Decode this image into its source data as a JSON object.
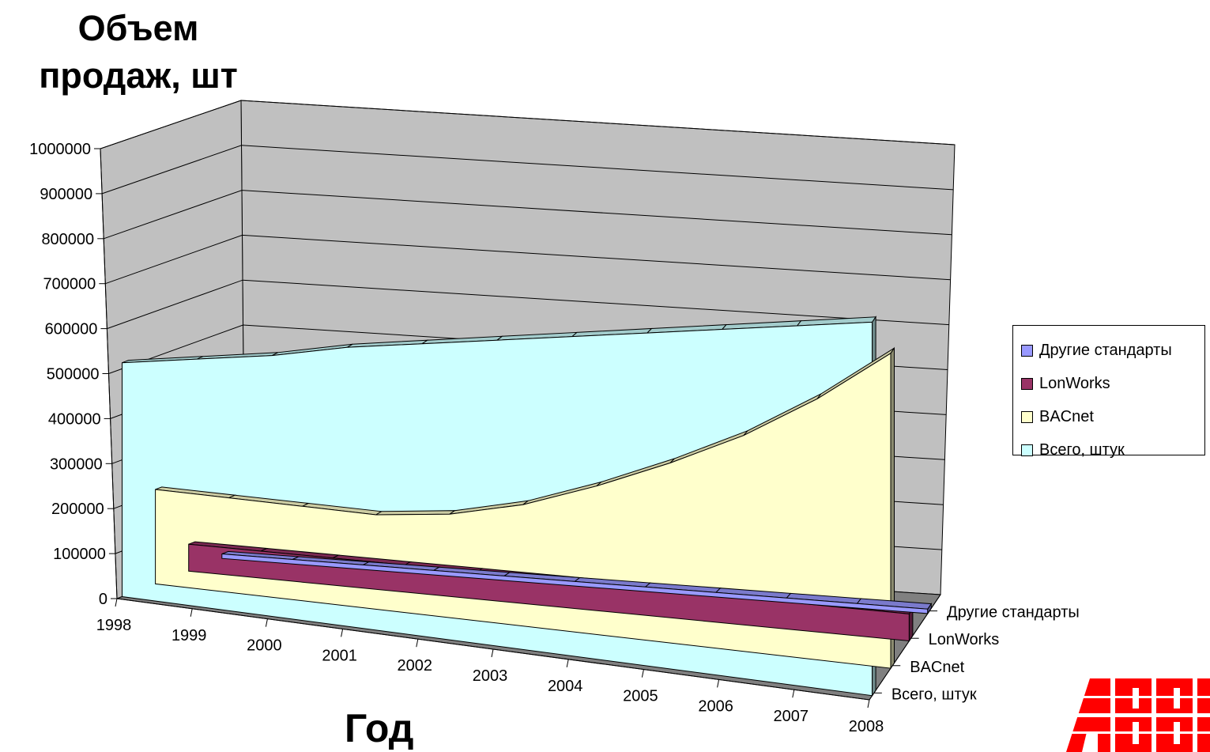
{
  "chart_data": {
    "type": "area",
    "view": "3d",
    "ylabel": "Объем продаж, шт",
    "xlabel": "Год",
    "ylim": [
      0,
      1000000
    ],
    "yticks": [
      "0",
      "100000",
      "200000",
      "300000",
      "400000",
      "500000",
      "600000",
      "700000",
      "800000",
      "900000",
      "1000000"
    ],
    "categories": [
      "1998",
      "1999",
      "2000",
      "2001",
      "2002",
      "2003",
      "2004",
      "2005",
      "2006",
      "2007",
      "2008"
    ],
    "depth_labels": [
      "Всего, штук",
      "BACnet",
      "LonWorks",
      "Другие стандарты"
    ],
    "series": [
      {
        "name": "Другие стандарты",
        "color": "#9999ff",
        "values": [
          10000,
          10000,
          10000,
          10000,
          10000,
          10000,
          10000,
          10000,
          10000,
          10000,
          10000
        ]
      },
      {
        "name": "LonWorks",
        "color": "#993366",
        "values": [
          60000,
          60000,
          60000,
          60000,
          60000,
          60000,
          60000,
          60000,
          60000,
          60000,
          60000
        ]
      },
      {
        "name": "BACnet",
        "color": "#ffffcc",
        "values": [
          210000,
          210000,
          210000,
          210000,
          230000,
          270000,
          330000,
          400000,
          480000,
          580000,
          700000
        ]
      },
      {
        "name": "Всего, штук",
        "color": "#ccffff",
        "values": [
          520000,
          550000,
          580000,
          620000,
          650000,
          680000,
          710000,
          740000,
          770000,
          800000,
          830000
        ]
      }
    ],
    "legend_position": "right",
    "grid": true
  },
  "logo": {
    "text": "ABB",
    "color": "#ff0000"
  }
}
